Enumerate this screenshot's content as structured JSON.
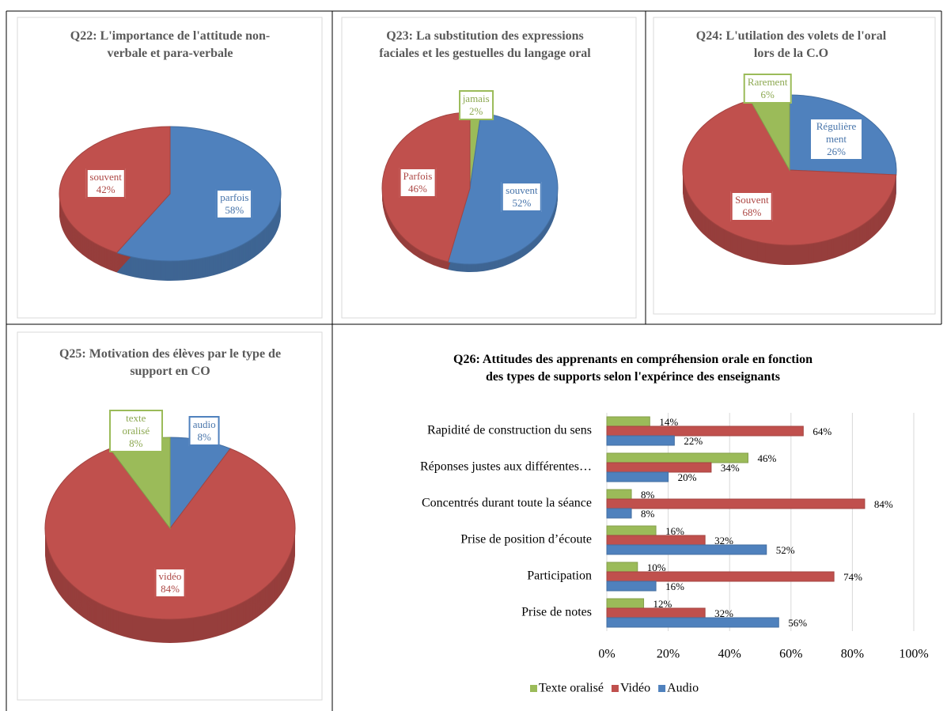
{
  "chart_data": [
    {
      "type": "pie",
      "title": "Q22: L'importance de l'attitude non-verbale et para-verbale",
      "categories": [
        "parfois",
        "souvent"
      ],
      "values": [
        58,
        42
      ],
      "value_labels": [
        "58%",
        "42%"
      ],
      "colors": [
        "#4f81bd",
        "#c0504d"
      ]
    },
    {
      "type": "pie",
      "title": "Q23: La substitution des expressions faciales et les gestuelles du langage oral",
      "categories": [
        "jamais",
        "souvent",
        "Parfois"
      ],
      "values": [
        2,
        52,
        46
      ],
      "value_labels": [
        "2%",
        "52%",
        "46%"
      ],
      "colors": [
        "#9bbb59",
        "#4f81bd",
        "#c0504d"
      ]
    },
    {
      "type": "pie",
      "title": "Q24: L'utilation des volets de l'oral lors de la C.O",
      "categories": [
        "Régulièrement",
        "Souvent",
        "Rarement"
      ],
      "values": [
        26,
        68,
        6
      ],
      "value_labels": [
        "26%",
        "68%",
        "6%"
      ],
      "colors": [
        "#4f81bd",
        "#c0504d",
        "#9bbb59"
      ]
    },
    {
      "type": "pie",
      "title": "Q25: Motivation des élèves par le type de support en CO",
      "categories": [
        "audio",
        "vidéo",
        "texte oralisé"
      ],
      "values": [
        8,
        84,
        8
      ],
      "value_labels": [
        "8%",
        "84%",
        "8%"
      ],
      "colors": [
        "#4f81bd",
        "#c0504d",
        "#9bbb59"
      ]
    },
    {
      "type": "bar",
      "orientation": "horizontal",
      "title": "Q26: Attitudes des apprenants en compréhension orale en fonction des types de supports selon l'expérince des enseignants",
      "categories": [
        "Rapidité de construction du sens",
        "Réponses justes aux différentes…",
        "Concentrés durant toute la séance",
        "Prise de position d’écoute",
        "Participation",
        "Prise de notes"
      ],
      "series": [
        {
          "name": "Texte oralisé",
          "color": "#9bbb59",
          "values": [
            14,
            46,
            8,
            16,
            10,
            12
          ],
          "value_labels": [
            "14%",
            "46%",
            "8%",
            "16%",
            "10%",
            "12%"
          ]
        },
        {
          "name": "Vidéo",
          "color": "#c0504d",
          "values": [
            64,
            34,
            84,
            32,
            74,
            32
          ],
          "value_labels": [
            "64%",
            "34%",
            "84%",
            "32%",
            "74%",
            "32%"
          ]
        },
        {
          "name": "Audio",
          "color": "#4f81bd",
          "values": [
            22,
            20,
            8,
            52,
            16,
            56
          ],
          "value_labels": [
            "22%",
            "20%",
            "8%",
            "52%",
            "16%",
            "56%"
          ]
        }
      ],
      "xlim": [
        0,
        100
      ],
      "xticks": [
        {
          "value": 0,
          "label": "0%"
        },
        {
          "value": 20,
          "label": "20%"
        },
        {
          "value": 40,
          "label": "40%"
        },
        {
          "value": 60,
          "label": "60%"
        },
        {
          "value": 80,
          "label": "80%"
        },
        {
          "value": 100,
          "label": "100%"
        }
      ],
      "grid": true,
      "legend": "bottom"
    }
  ]
}
